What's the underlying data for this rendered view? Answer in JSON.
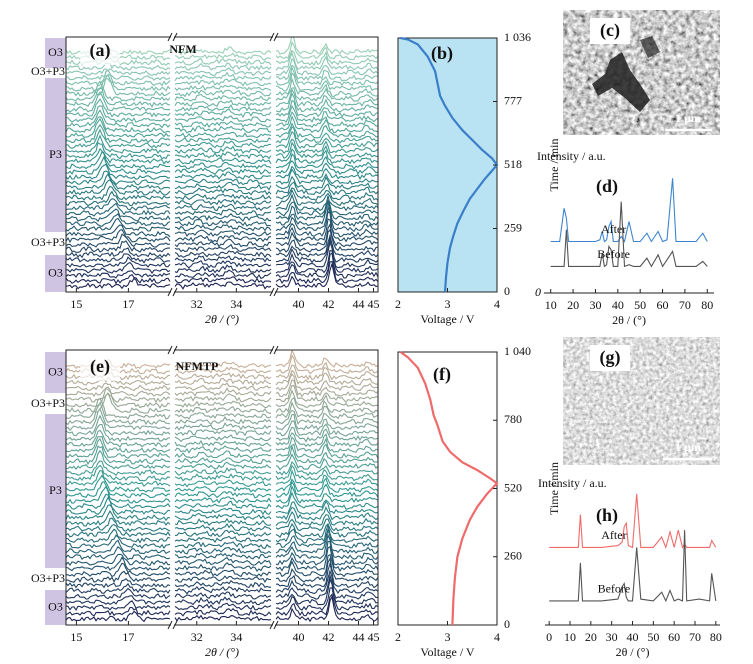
{
  "chart_data": [
    {
      "type": "waterfall",
      "panel_label": "(a)",
      "title": "NFM",
      "xlabel": "2θ / (°)",
      "xlim": [
        [
          14.6,
          18.6
        ],
        [
          30.9,
          35.8
        ],
        [
          38.5,
          45.3
        ]
      ],
      "xticks": [
        15,
        17,
        32,
        34,
        40,
        42,
        44,
        45
      ],
      "phases": [
        "O3",
        "O3+P3",
        "P3",
        "O3+P3",
        "O3"
      ],
      "colors": [
        "#1c2352",
        "#2e8f8c",
        "#9ad0b5"
      ]
    },
    {
      "type": "line",
      "panel_label": "(b)",
      "xlabel": "Voltage / V",
      "ylabel": "Time / min",
      "x": [
        2.95,
        2.97,
        3.0,
        3.05,
        3.12,
        3.2,
        3.32,
        3.45,
        3.6,
        3.75,
        3.9,
        4.0,
        3.9,
        3.7,
        3.5,
        3.3,
        3.1,
        2.95,
        2.85,
        2.8,
        2.75,
        2.6,
        2.4,
        2.2,
        2.05
      ],
      "values": [
        0,
        60,
        120,
        180,
        230,
        280,
        330,
        380,
        420,
        460,
        495,
        518,
        545,
        580,
        620,
        660,
        710,
        760,
        800,
        850,
        900,
        960,
        1010,
        1030,
        1036
      ],
      "color": "#3a7fc8",
      "background": "#b9e2f3",
      "xlim": [
        2,
        4
      ],
      "xticks": [
        2,
        3,
        4
      ],
      "ylim": [
        0,
        1036
      ],
      "yticks": [
        0,
        259,
        518,
        777,
        {
          "value": 1036,
          "label": "1 036"
        }
      ]
    },
    {
      "type": "spectrum",
      "panel_label": "(d)",
      "xlabel": "2θ / (°)",
      "ylabel": "Intensity / a.u.",
      "x": [
        10,
        14,
        16,
        17,
        18,
        24,
        30,
        32,
        33,
        34,
        35,
        36,
        37,
        38,
        40,
        41.5,
        43,
        45,
        47,
        50,
        53,
        55,
        58,
        60,
        62,
        64.5,
        66,
        70,
        75,
        78,
        80
      ],
      "series": [
        {
          "name": "After",
          "color": "#3d86cf",
          "values": [
            3.1,
            3.1,
            5.1,
            4.5,
            3.1,
            3.1,
            3.1,
            3.2,
            3.7,
            3.1,
            3.2,
            4.0,
            4.3,
            3.1,
            3.1,
            3.4,
            3.1,
            4.3,
            3.1,
            3.1,
            3.6,
            3.1,
            3.7,
            3.1,
            3.2,
            6.9,
            3.1,
            3.1,
            3.1,
            3.6,
            3.1
          ]
        },
        {
          "name": "Before",
          "color": "#555555",
          "values": [
            1.6,
            1.6,
            1.6,
            3.8,
            1.6,
            1.6,
            1.6,
            1.6,
            2.4,
            1.6,
            1.7,
            2.8,
            2.6,
            1.6,
            1.6,
            5.5,
            1.6,
            1.7,
            1.6,
            1.6,
            2.1,
            1.6,
            2.3,
            1.6,
            2.0,
            2.5,
            1.6,
            1.6,
            1.6,
            1.9,
            1.6
          ]
        }
      ],
      "xlim": [
        7,
        83
      ],
      "xticks": [
        10,
        20,
        30,
        40,
        50,
        60,
        70,
        80
      ],
      "ylim": [
        0,
        8
      ],
      "yticks": [
        0
      ]
    },
    {
      "type": "waterfall",
      "panel_label": "(e)",
      "title": "NFMTP",
      "xlabel": "2θ / (°)",
      "xlim": [
        [
          14.6,
          18.6
        ],
        [
          30.9,
          35.8
        ],
        [
          38.5,
          45.3
        ]
      ],
      "xticks": [
        15,
        17,
        32,
        34,
        40,
        42,
        44,
        45
      ],
      "phases": [
        "O3",
        "O3+P3",
        "P3",
        "O3+P3",
        "O3"
      ],
      "colors": [
        "#1c2352",
        "#2e9a93",
        "#c8ae98"
      ]
    },
    {
      "type": "line",
      "panel_label": "(f)",
      "xlabel": "Voltage / V",
      "ylabel": "Time / min",
      "x": [
        3.1,
        3.12,
        3.15,
        3.2,
        3.3,
        3.45,
        3.6,
        3.8,
        4.0,
        3.85,
        3.6,
        3.3,
        3.05,
        2.9,
        2.8,
        2.72,
        2.65,
        2.55,
        2.4,
        2.2,
        2.05
      ],
      "values": [
        0,
        100,
        180,
        260,
        330,
        400,
        450,
        500,
        540,
        560,
        590,
        620,
        660,
        700,
        760,
        800,
        860,
        920,
        980,
        1020,
        1040
      ],
      "color": "#ef6b6b",
      "background": "#ffffff",
      "xlim": [
        2,
        4
      ],
      "xticks": [
        2,
        3,
        4
      ],
      "ylim": [
        0,
        1040
      ],
      "yticks": [
        0,
        260,
        520,
        780,
        {
          "value": 1040,
          "label": "1 040"
        }
      ]
    },
    {
      "type": "spectrum",
      "panel_label": "(h)",
      "xlabel": "2θ / (°)",
      "ylabel": "Intensity / a.u.",
      "x": [
        0,
        10,
        14,
        15,
        16,
        25,
        33,
        35,
        36,
        37,
        38,
        40,
        42,
        44,
        50,
        54,
        56,
        58,
        60,
        62,
        64,
        65,
        66,
        72,
        77,
        78,
        80
      ],
      "series": [
        {
          "name": "After",
          "color": "#ef6b6b",
          "values": [
            4.5,
            4.5,
            4.5,
            6.4,
            4.5,
            4.5,
            4.6,
            4.8,
            5.7,
            5.9,
            4.6,
            4.5,
            7.6,
            4.5,
            4.5,
            5.1,
            4.5,
            5.4,
            4.5,
            5.5,
            4.5,
            4.7,
            4.5,
            4.5,
            4.5,
            4.9,
            4.5
          ]
        },
        {
          "name": "Before",
          "color": "#555555",
          "values": [
            1.4,
            1.4,
            1.4,
            3.6,
            1.4,
            1.4,
            1.5,
            2.2,
            2.4,
            1.6,
            1.4,
            1.4,
            4.5,
            1.5,
            1.4,
            1.9,
            1.4,
            2.0,
            1.4,
            1.5,
            1.4,
            5.5,
            1.4,
            1.5,
            1.4,
            3.0,
            1.4
          ]
        }
      ],
      "xlim": [
        -2,
        82
      ],
      "xticks": [
        0,
        10,
        20,
        30,
        40,
        50,
        60,
        70,
        80
      ],
      "ylim": [
        0,
        8
      ]
    }
  ],
  "images": [
    {
      "panel_label": "(c)",
      "scale_bar": "1 μm"
    },
    {
      "panel_label": "(g)",
      "scale_bar": "1 μm"
    }
  ]
}
